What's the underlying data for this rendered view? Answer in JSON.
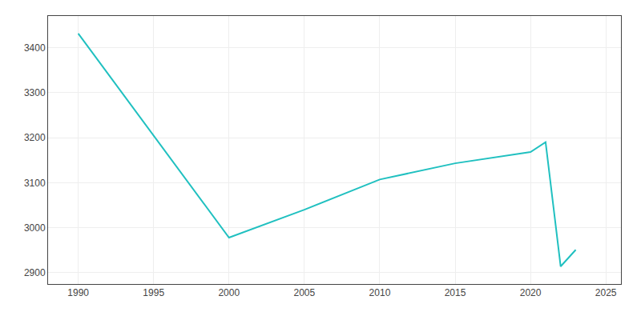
{
  "chart_data": {
    "type": "line",
    "x": [
      1990,
      2000,
      2005,
      2010,
      2015,
      2020,
      2021,
      2022,
      2023
    ],
    "values": [
      3431,
      2978,
      3040,
      3107,
      3143,
      3168,
      3190,
      2914,
      2951
    ],
    "color": "#20c0c0",
    "xlim": [
      1988,
      2026
    ],
    "ylim": [
      2875,
      3470
    ],
    "xticks": [
      1990,
      1995,
      2000,
      2005,
      2010,
      2015,
      2020,
      2025
    ],
    "yticks": [
      2900,
      3000,
      3100,
      3200,
      3300,
      3400
    ],
    "grid": true
  }
}
